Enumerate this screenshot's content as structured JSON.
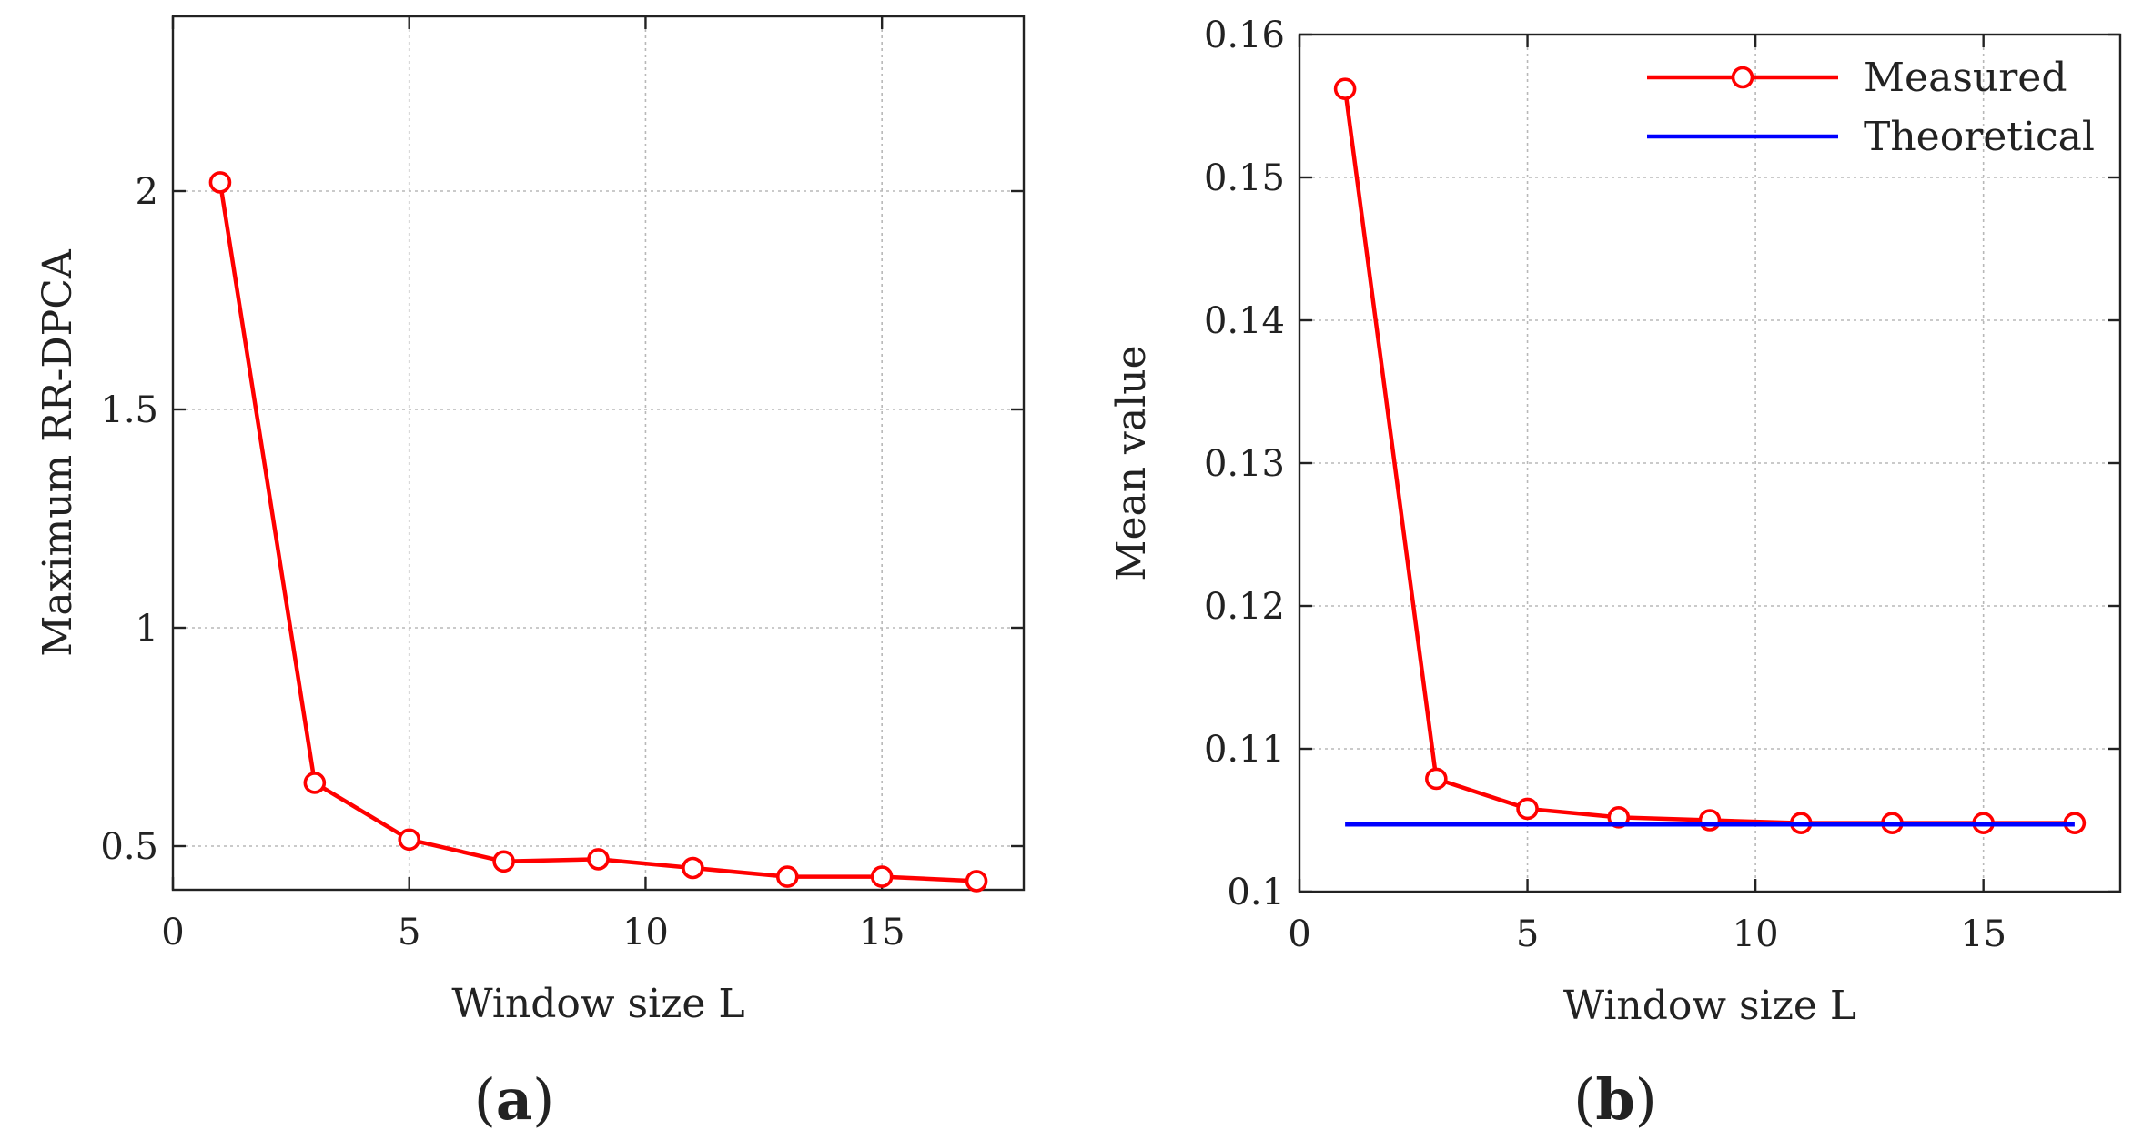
{
  "chart_data": [
    {
      "type": "line",
      "panel_label_open": "(",
      "panel_label_letter": "a",
      "panel_label_close": ")",
      "title": "",
      "xlabel": "Window size L",
      "ylabel": "Maximum RR-DPCA",
      "xlim": [
        0,
        18
      ],
      "ylim": [
        0.4,
        2.4
      ],
      "xticks": [
        0,
        5,
        10,
        15
      ],
      "xtick_labels": [
        "0",
        "5",
        "10",
        "15"
      ],
      "yticks": [
        0.5,
        1,
        1.5,
        2
      ],
      "ytick_labels": [
        "0.5",
        "1",
        "1.5",
        "2"
      ],
      "grid": true,
      "series": [
        {
          "name": "Maximum RR-DPCA",
          "color": "#ff0000",
          "marker": "circle",
          "x": [
            1,
            3,
            5,
            7,
            9,
            11,
            13,
            15,
            17
          ],
          "y": [
            2.02,
            0.645,
            0.515,
            0.465,
            0.47,
            0.45,
            0.43,
            0.43,
            0.42
          ]
        }
      ]
    },
    {
      "type": "line",
      "panel_label_open": "(",
      "panel_label_letter": "b",
      "panel_label_close": ")",
      "title": "",
      "xlabel": "Window size L",
      "ylabel": "Mean value",
      "xlim": [
        0,
        18
      ],
      "ylim": [
        0.1,
        0.16
      ],
      "xticks": [
        0,
        5,
        10,
        15
      ],
      "xtick_labels": [
        "0",
        "5",
        "10",
        "15"
      ],
      "yticks": [
        0.1,
        0.11,
        0.12,
        0.13,
        0.14,
        0.15,
        0.16
      ],
      "ytick_labels": [
        "0.1",
        "0.11",
        "0.12",
        "0.13",
        "0.14",
        "0.15",
        "0.16"
      ],
      "grid": true,
      "legend_position": "top-right",
      "series": [
        {
          "name": "Measured",
          "color": "#ff0000",
          "marker": "circle",
          "x": [
            1,
            3,
            5,
            7,
            9,
            11,
            13,
            15,
            17
          ],
          "y": [
            0.1562,
            0.1079,
            0.1058,
            0.1052,
            0.105,
            0.1048,
            0.1048,
            0.1048,
            0.1048
          ]
        },
        {
          "name": "Theoretical",
          "color": "#0000ff",
          "marker": "none",
          "x": [
            1,
            17
          ],
          "y": [
            0.1047,
            0.1047
          ]
        }
      ]
    }
  ]
}
